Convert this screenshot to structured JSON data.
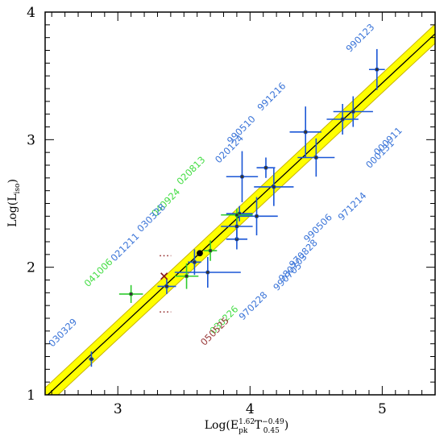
{
  "chart_data": {
    "type": "scatter",
    "title": "",
    "xlabel": {
      "base": "Log(E",
      "sub1": "pk",
      "sup1": "1.62",
      "mid": " T",
      "sub2": "0.45",
      "sup2": "−0.49",
      "end": ")"
    },
    "ylabel": {
      "base": "Log(L",
      "sub": "iso",
      "end": ")"
    },
    "xlim": [
      2.45,
      5.4
    ],
    "ylim": [
      1.0,
      4.0
    ],
    "x_ticks": [
      "3",
      "4",
      "5"
    ],
    "x_tick_values": [
      3,
      4,
      5
    ],
    "y_ticks": [
      "1",
      "2",
      "3",
      "4"
    ],
    "y_tick_values": [
      1,
      2,
      3,
      4
    ],
    "grid": false,
    "colors": {
      "band_fill": "#ffff00",
      "band_edge": "#c8b400",
      "fit_line": "#000000",
      "blue": "#1a56d6",
      "green": "#2ecc2e",
      "darkred": "#8b1a1a",
      "label_blue": "#3a74d8",
      "label_green": "#44dd44",
      "label_red": "#9a3a3a"
    },
    "fit": {
      "x0": 2.45,
      "y0": 0.98,
      "x1": 5.4,
      "y1": 3.83,
      "band_halfwidth": 0.075
    },
    "series": [
      {
        "color": "blue",
        "points": [
          {
            "x": 2.8,
            "y": 1.28,
            "xerr": 0.02,
            "yerr": 0.06
          },
          {
            "x": 3.37,
            "y": 1.85,
            "xerr": 0.07,
            "yerr": 0.06
          },
          {
            "x": 3.58,
            "y": 2.04,
            "xerr": 0.05,
            "yerr": 0.1
          },
          {
            "x": 3.68,
            "y": 1.96,
            "xerr": 0.25,
            "yerr": 0.12
          },
          {
            "x": 3.9,
            "y": 2.22,
            "xerr": 0.08,
            "yerr": 0.08
          },
          {
            "x": 3.9,
            "y": 2.32,
            "xerr": 0.12,
            "yerr": 0.1
          },
          {
            "x": 3.92,
            "y": 2.42,
            "xerr": 0.1,
            "yerr": 0.06
          },
          {
            "x": 3.94,
            "y": 2.71,
            "xerr": 0.12,
            "yerr": 0.2
          },
          {
            "x": 4.05,
            "y": 2.4,
            "xerr": 0.16,
            "yerr": 0.15
          },
          {
            "x": 4.12,
            "y": 2.78,
            "xerr": 0.07,
            "yerr": 0.08
          },
          {
            "x": 4.18,
            "y": 2.63,
            "xerr": 0.15,
            "yerr": 0.15
          },
          {
            "x": 4.42,
            "y": 3.06,
            "xerr": 0.12,
            "yerr": 0.2
          },
          {
            "x": 4.5,
            "y": 2.86,
            "xerr": 0.14,
            "yerr": 0.15
          },
          {
            "x": 4.7,
            "y": 3.16,
            "xerr": 0.12,
            "yerr": 0.12
          },
          {
            "x": 4.78,
            "y": 3.22,
            "xerr": 0.15,
            "yerr": 0.12
          },
          {
            "x": 4.96,
            "y": 3.55,
            "xerr": 0.06,
            "yerr": 0.16
          }
        ]
      },
      {
        "color": "green",
        "points": [
          {
            "x": 3.1,
            "y": 1.79,
            "xerr": 0.09,
            "yerr": 0.07
          },
          {
            "x": 3.52,
            "y": 1.93,
            "xerr": 0.09,
            "yerr": 0.1
          },
          {
            "x": 3.7,
            "y": 2.13,
            "xerr": 0.05,
            "yerr": 0.08
          },
          {
            "x": 3.9,
            "y": 2.41,
            "xerr": 0.12,
            "yerr": 0.05
          }
        ]
      },
      {
        "color": "black",
        "points": [
          {
            "x": 3.62,
            "y": 2.11,
            "xerr": 0,
            "yerr": 0
          }
        ]
      }
    ],
    "upper_limit_marker": {
      "x": 3.35,
      "y": 1.93,
      "color": "darkred"
    },
    "dotted_bounds": [
      {
        "x": 3.36,
        "y": 2.09
      },
      {
        "x": 3.36,
        "y": 1.65
      }
    ],
    "annotations": [
      {
        "text": "990123",
        "color": "label_blue",
        "x": 4.85,
        "y": 3.78,
        "angle": -45
      },
      {
        "text": "991216",
        "color": "label_blue",
        "x": 4.18,
        "y": 3.32,
        "angle": -45
      },
      {
        "text": "990510",
        "color": "label_blue",
        "x": 3.95,
        "y": 3.06,
        "angle": -45
      },
      {
        "text": "020124",
        "color": "label_blue",
        "x": 3.86,
        "y": 2.91,
        "angle": -45
      },
      {
        "text": "020813",
        "color": "label_green",
        "x": 3.57,
        "y": 2.74,
        "angle": -45
      },
      {
        "text": "040924",
        "color": "label_green",
        "x": 3.38,
        "y": 2.49,
        "angle": -45
      },
      {
        "text": "030328",
        "color": "label_blue",
        "x": 3.27,
        "y": 2.37,
        "angle": -45
      },
      {
        "text": "021211",
        "color": "label_blue",
        "x": 3.07,
        "y": 2.14,
        "angle": -45
      },
      {
        "text": "041006",
        "color": "label_green",
        "x": 2.87,
        "y": 1.94,
        "angle": -45
      },
      {
        "text": "030329",
        "color": "label_blue",
        "x": 2.6,
        "y": 1.47,
        "angle": -45
      },
      {
        "text": "000911",
        "color": "label_blue",
        "x": 5.06,
        "y": 2.97,
        "angle": -45
      },
      {
        "text": "000131",
        "color": "label_blue",
        "x": 5.0,
        "y": 2.87,
        "angle": -45
      },
      {
        "text": "971214",
        "color": "label_blue",
        "x": 4.79,
        "y": 2.46,
        "angle": -45
      },
      {
        "text": "990506",
        "color": "label_blue",
        "x": 4.53,
        "y": 2.29,
        "angle": -45
      },
      {
        "text": "970828",
        "color": "label_blue",
        "x": 4.42,
        "y": 2.09,
        "angle": -45
      },
      {
        "text": "980703",
        "color": "label_blue",
        "x": 4.34,
        "y": 1.98,
        "angle": -45
      },
      {
        "text": "990705",
        "color": "label_blue",
        "x": 4.3,
        "y": 1.91,
        "angle": -45
      },
      {
        "text": "970228",
        "color": "label_blue",
        "x": 4.04,
        "y": 1.68,
        "angle": -45
      },
      {
        "text": "030226",
        "color": "label_green",
        "x": 3.82,
        "y": 1.57,
        "angle": -45
      },
      {
        "text": "050525",
        "color": "label_red",
        "x": 3.75,
        "y": 1.48,
        "angle": -45
      }
    ]
  }
}
